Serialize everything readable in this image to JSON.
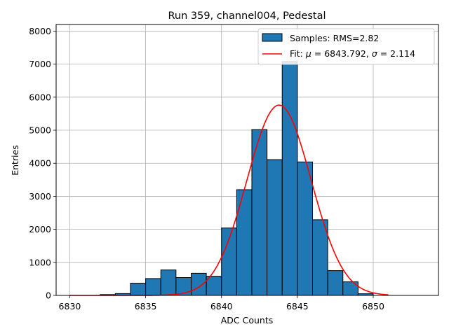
{
  "chart_data": {
    "type": "bar",
    "title": "Run 359, channel004, Pedestal",
    "xlabel": "ADC Counts",
    "ylabel": "Entries",
    "xlim": [
      6829.1,
      6854.3
    ],
    "ylim": [
      0,
      8200
    ],
    "x_ticks": [
      6830,
      6835,
      6840,
      6845,
      6850
    ],
    "y_ticks": [
      0,
      1000,
      2000,
      3000,
      4000,
      5000,
      6000,
      7000,
      8000
    ],
    "grid": true,
    "legend_position": "top-right",
    "series": [
      {
        "name": "Samples: RMS=2.82",
        "kind": "histogram",
        "color": "#1f77b4",
        "edge_color": "#000000",
        "bin_edges": [
          6830,
          6831,
          6832,
          6833,
          6834,
          6835,
          6836,
          6837,
          6838,
          6839,
          6840,
          6841,
          6842,
          6843,
          6844,
          6845,
          6846,
          6847,
          6848,
          6849,
          6850,
          6851,
          6852,
          6853
        ],
        "values": [
          0,
          0,
          25,
          55,
          370,
          510,
          770,
          540,
          670,
          580,
          2040,
          3200,
          5020,
          4110,
          7080,
          4040,
          2290,
          750,
          410,
          50,
          0,
          0,
          0
        ]
      },
      {
        "name": "Fit",
        "label_prefix": "Fit: ",
        "label_mu": "μ",
        "label_mu_value": " = 6843.792, ",
        "label_sigma": "σ",
        "label_sigma_value": " = 2.114",
        "kind": "gaussian",
        "color": "#ff0000",
        "mu": 6843.792,
        "sigma": 2.114,
        "amplitude": 5760,
        "x_range": [
          6830,
          6851
        ]
      }
    ]
  }
}
